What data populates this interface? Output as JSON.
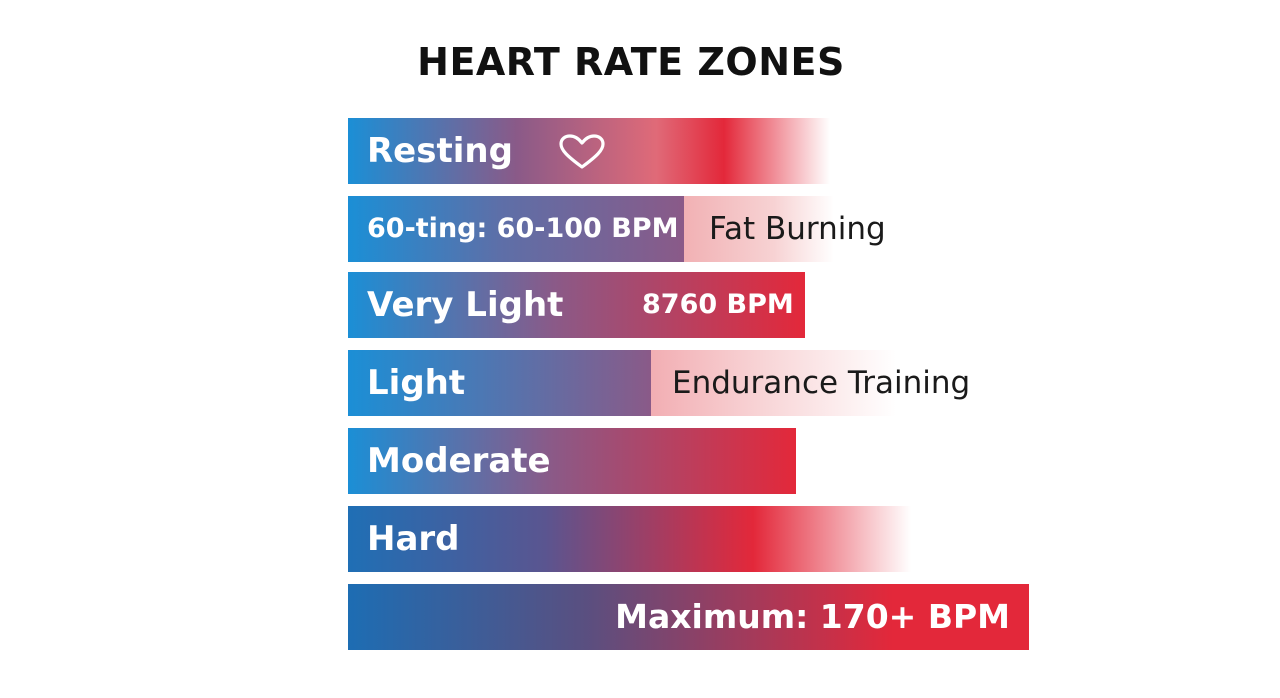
{
  "chart_data": {
    "type": "bar",
    "title": "HEART RATE ZONES",
    "categories": [
      "Resting",
      "60-ting: 60-100 BPM",
      "Very Light",
      "Light",
      "Moderate",
      "Hard",
      "Maximum: 170+ BPM"
    ],
    "values": [
      482,
      336,
      457,
      303,
      448,
      563,
      681
    ],
    "annotations": [
      "",
      "Fat Burning",
      "8760 BPM",
      "Endurance Training",
      "",
      "",
      ""
    ],
    "icons": [
      "heart-outline-icon",
      "",
      "",
      "",
      "",
      "",
      ""
    ],
    "colors": {
      "start": "#1b8fd6",
      "middle": "#8a5a88",
      "end": "#e3283a"
    },
    "grid": false,
    "legend": "none"
  }
}
